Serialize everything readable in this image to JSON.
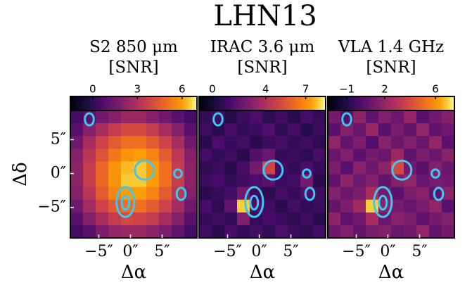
{
  "title": "LHN13",
  "chart_data": [
    {
      "type": "heatmap",
      "title": [
        "S2 850 μm",
        "[SNR]"
      ],
      "colormap": "inferno",
      "xlabel": "Δα",
      "ylabel": "Δδ",
      "xlim": [
        -9.5,
        10.5
      ],
      "ylim": [
        -9.5,
        9.3
      ],
      "xticks": [
        {
          "value": -5,
          "label": "−5″"
        },
        {
          "value": 0,
          "label": "0″"
        },
        {
          "value": 5,
          "label": "5″"
        }
      ],
      "yticks": [
        {
          "value": 5,
          "label": "5″"
        },
        {
          "value": 0,
          "label": "0″"
        },
        {
          "value": -5,
          "label": "−5″"
        }
      ],
      "colorbar": {
        "lim": [
          -1.5,
          7
        ],
        "ticks": [
          0,
          3,
          6
        ]
      },
      "image": [
        [
          0.5,
          1.0,
          1.5,
          2.0,
          2.5,
          2.5,
          2.0,
          1.5,
          1.0,
          0.5
        ],
        [
          1.0,
          2.0,
          2.8,
          3.5,
          4.0,
          4.0,
          3.5,
          2.8,
          2.0,
          1.0
        ],
        [
          1.5,
          2.8,
          3.8,
          4.5,
          5.0,
          5.0,
          4.5,
          3.8,
          2.8,
          1.5
        ],
        [
          2.0,
          3.2,
          4.3,
          5.2,
          5.8,
          6.0,
          5.5,
          4.5,
          3.3,
          2.0
        ],
        [
          2.2,
          3.5,
          4.8,
          5.8,
          6.3,
          6.5,
          6.0,
          5.0,
          3.6,
          2.2
        ],
        [
          2.2,
          3.5,
          4.8,
          5.8,
          6.5,
          6.5,
          6.0,
          5.0,
          3.6,
          2.2
        ],
        [
          2.0,
          3.2,
          4.5,
          5.5,
          6.0,
          6.0,
          5.5,
          4.5,
          3.3,
          2.0
        ],
        [
          1.5,
          2.7,
          3.8,
          4.5,
          5.0,
          5.0,
          4.5,
          3.8,
          2.7,
          1.5
        ],
        [
          1.0,
          2.0,
          2.8,
          3.5,
          4.0,
          3.8,
          3.5,
          2.8,
          2.0,
          1.0
        ],
        [
          0.5,
          1.0,
          1.8,
          2.3,
          2.5,
          2.5,
          2.2,
          1.8,
          1.2,
          0.5
        ]
      ],
      "contours": [
        {
          "x": -6.5,
          "y": 8,
          "rx": 0.7,
          "ry": 0.9
        },
        {
          "x": 2.2,
          "y": 0.5,
          "rx": 1.5,
          "ry": 1.4
        },
        {
          "x": -0.8,
          "y": -4.2,
          "rx": 1.4,
          "ry": 2.2
        },
        {
          "x": -0.8,
          "y": -4.3,
          "rx": 0.6,
          "ry": 1.0
        },
        {
          "x": 7.5,
          "y": 0,
          "rx": 0.6,
          "ry": 0.6
        },
        {
          "x": 8,
          "y": -3,
          "rx": 0.7,
          "ry": 0.9
        }
      ]
    },
    {
      "type": "heatmap",
      "title": [
        "IRAC 3.6 μm",
        "[SNR]"
      ],
      "colormap": "inferno",
      "xlabel": "Δα",
      "xlim": [
        -9.5,
        10.5
      ],
      "ylim": [
        -9.5,
        9.3
      ],
      "xticks": [
        {
          "value": -5,
          "label": "−5″"
        },
        {
          "value": 0,
          "label": "0″"
        },
        {
          "value": 5,
          "label": "5″"
        }
      ],
      "colorbar": {
        "lim": [
          -1,
          8.5
        ],
        "ticks": [
          0,
          4,
          7
        ]
      },
      "image": [
        [
          0.8,
          1.2,
          0.5,
          1.0,
          1.4,
          0.7,
          1.1,
          0.6,
          1.3,
          0.9
        ],
        [
          1.1,
          0.6,
          1.3,
          0.8,
          1.0,
          1.5,
          0.7,
          1.2,
          0.5,
          1.0
        ],
        [
          0.5,
          1.4,
          0.9,
          1.2,
          0.6,
          1.0,
          1.3,
          0.8,
          1.1,
          0.7
        ],
        [
          1.2,
          0.8,
          1.1,
          0.6,
          1.6,
          2.2,
          0.9,
          1.0,
          0.7,
          1.3
        ],
        [
          0.7,
          1.0,
          0.6,
          1.3,
          2.5,
          5.0,
          1.2,
          0.8,
          1.4,
          0.9
        ],
        [
          1.0,
          1.3,
          0.8,
          1.1,
          1.4,
          1.8,
          1.0,
          1.2,
          2.5,
          0.6
        ],
        [
          0.6,
          0.9,
          1.2,
          2.4,
          1.0,
          0.7,
          1.3,
          0.9,
          1.5,
          1.1
        ],
        [
          1.3,
          0.7,
          2.0,
          8.0,
          1.5,
          1.1,
          0.6,
          1.2,
          0.8,
          1.0
        ],
        [
          0.9,
          1.1,
          0.8,
          2.8,
          0.9,
          1.3,
          1.0,
          0.7,
          1.1,
          0.6
        ],
        [
          1.1,
          0.6,
          1.3,
          0.9,
          1.2,
          0.8,
          1.4,
          1.0,
          0.7,
          1.2
        ]
      ],
      "contours": [
        {
          "x": -6.5,
          "y": 8,
          "rx": 0.7,
          "ry": 0.9
        },
        {
          "x": 2.2,
          "y": 0.5,
          "rx": 1.5,
          "ry": 1.4
        },
        {
          "x": -0.8,
          "y": -4.2,
          "rx": 1.4,
          "ry": 2.2
        },
        {
          "x": -0.8,
          "y": -4.3,
          "rx": 0.6,
          "ry": 1.0
        },
        {
          "x": 7.5,
          "y": 0,
          "rx": 0.6,
          "ry": 0.6
        },
        {
          "x": 8,
          "y": -3,
          "rx": 0.7,
          "ry": 0.9
        }
      ]
    },
    {
      "type": "heatmap",
      "title": [
        "VLA 1.4 GHz",
        "[SNR]"
      ],
      "colormap": "inferno",
      "xlabel": "Δα",
      "xlim": [
        -9.5,
        10.5
      ],
      "ylim": [
        -9.5,
        9.3
      ],
      "xticks": [
        {
          "value": -5,
          "label": "−5″"
        },
        {
          "value": 0,
          "label": "0″"
        },
        {
          "value": 5,
          "label": "5″"
        }
      ],
      "colorbar": {
        "lim": [
          -2.5,
          7.5
        ],
        "ticks": [
          {
            "value": -1,
            "label": "−1"
          },
          2,
          6
        ]
      },
      "image": [
        [
          1.2,
          0.3,
          1.8,
          0.6,
          1.5,
          0.9,
          2.0,
          0.4,
          1.1,
          1.6
        ],
        [
          0.5,
          1.6,
          0.8,
          2.1,
          0.4,
          1.3,
          0.7,
          1.9,
          0.6,
          1.0
        ],
        [
          1.9,
          0.7,
          1.4,
          0.2,
          1.7,
          0.9,
          1.5,
          0.8,
          2.0,
          0.5
        ],
        [
          0.8,
          1.5,
          0.5,
          1.2,
          0.9,
          2.2,
          0.6,
          1.4,
          0.9,
          1.7
        ],
        [
          1.4,
          0.4,
          1.7,
          0.9,
          1.8,
          4.0,
          1.1,
          0.5,
          1.6,
          0.8
        ],
        [
          0.6,
          1.8,
          1.0,
          1.5,
          0.7,
          1.6,
          1.9,
          0.8,
          1.3,
          1.1
        ],
        [
          1.6,
          0.9,
          1.3,
          2.6,
          1.2,
          0.5,
          1.4,
          1.7,
          0.6,
          1.8
        ],
        [
          0.7,
          1.4,
          2.4,
          7.0,
          1.8,
          1.2,
          0.8,
          1.3,
          1.9,
          0.4
        ],
        [
          1.8,
          0.6,
          1.1,
          2.5,
          0.9,
          1.7,
          1.4,
          0.6,
          1.2,
          1.5
        ],
        [
          0.9,
          1.5,
          0.7,
          1.3,
          1.6,
          0.8,
          1.1,
          1.9,
          0.7,
          1.2
        ]
      ],
      "contours": [
        {
          "x": -6.5,
          "y": 8,
          "rx": 0.7,
          "ry": 0.9
        },
        {
          "x": 2.2,
          "y": 0.5,
          "rx": 1.5,
          "ry": 1.4
        },
        {
          "x": -0.8,
          "y": -4.2,
          "rx": 1.4,
          "ry": 2.2
        },
        {
          "x": -0.8,
          "y": -4.3,
          "rx": 0.6,
          "ry": 1.0
        },
        {
          "x": 7.5,
          "y": 0,
          "rx": 0.6,
          "ry": 0.6
        },
        {
          "x": 8,
          "y": -3,
          "rx": 0.7,
          "ry": 0.9
        }
      ]
    }
  ]
}
